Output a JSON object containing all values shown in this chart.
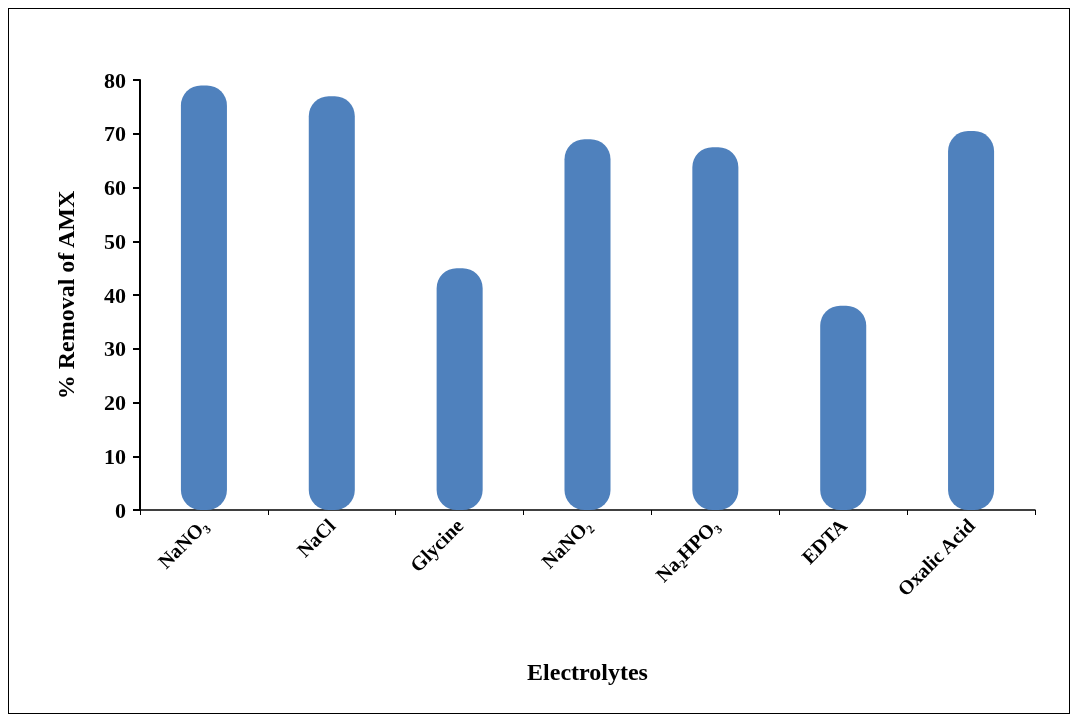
{
  "chart_data": {
    "type": "bar",
    "xlabel": "Electrolytes",
    "ylabel": "% Removal of AMX",
    "categories": [
      "NaNO₃",
      "NaCl",
      "Glycine",
      "NaNO₂",
      "Na₂HPO₃",
      "EDTA",
      "Oxalic Acid"
    ],
    "values": [
      79,
      77,
      45,
      69,
      67.5,
      38,
      70.5
    ],
    "color": "#4f81bd",
    "ylim": [
      0,
      80
    ],
    "yticks": [
      0,
      10,
      20,
      30,
      40,
      50,
      60,
      70,
      80
    ],
    "grid": false
  }
}
